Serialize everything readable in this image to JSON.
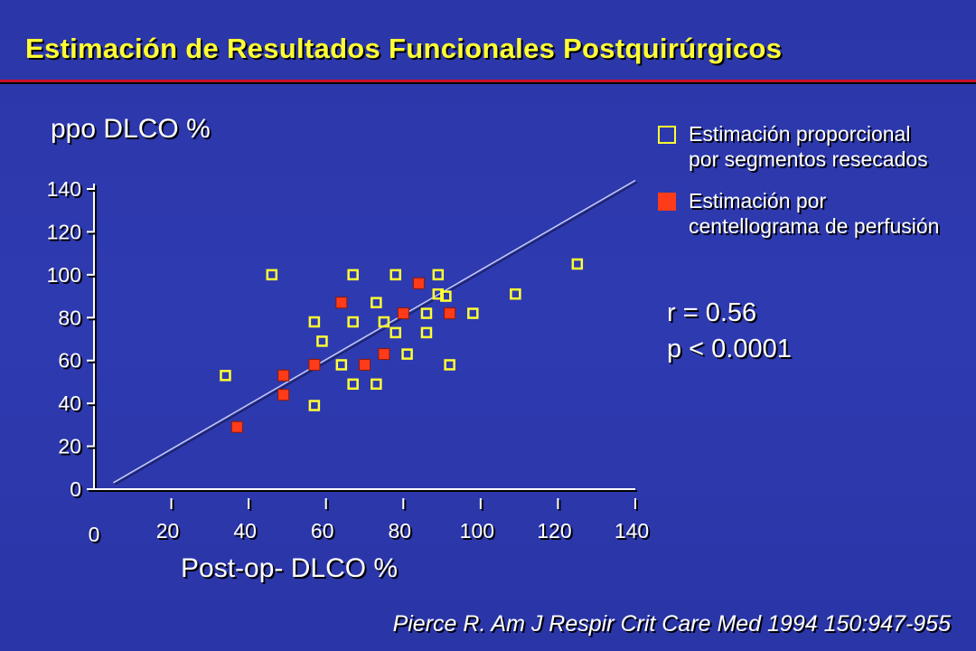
{
  "header": {
    "title": "Estimación de Resultados Funcionales Postquirúrgicos"
  },
  "legend": {
    "items": [
      {
        "line1": "Estimación proporcional",
        "line2": "por segmentos resecados",
        "marker": "open-square"
      },
      {
        "line1": "Estimación por",
        "line2": "centellograma de perfusión",
        "marker": "filled-square"
      }
    ]
  },
  "stats": {
    "r": "r = 0.56",
    "p": "p < 0.0001"
  },
  "citation": "Pierce R. Am J Respir Crit Care Med 1994 150:947-955",
  "colors": {
    "background": "#2e3ab0",
    "title": "#ffff33",
    "accent_rule": "#c8102e",
    "open_marker": "#ffff33",
    "filled_marker": "#ff3b1a",
    "text": "#ffffff"
  },
  "chart_data": {
    "type": "scatter",
    "xlabel": "Post-op- DLCO %",
    "ylabel": "ppo DLCO %",
    "xlim": [
      0,
      140
    ],
    "ylim": [
      0,
      140
    ],
    "x_ticks": [
      "20",
      "40",
      "60",
      "80",
      "100",
      "120",
      "140"
    ],
    "x_zero_label": "0",
    "y_ticks": [
      "0",
      "20",
      "40",
      "60",
      "80",
      "100",
      "120",
      "140"
    ],
    "series": [
      {
        "name": "Estimación proporcional por segmentos resecados",
        "marker": "open-square",
        "points": [
          [
            34,
            53
          ],
          [
            46,
            100
          ],
          [
            57,
            78
          ],
          [
            57,
            39
          ],
          [
            59,
            69
          ],
          [
            64,
            58
          ],
          [
            67,
            100
          ],
          [
            67,
            78
          ],
          [
            67,
            49
          ],
          [
            73,
            87
          ],
          [
            73,
            49
          ],
          [
            75,
            78
          ],
          [
            78,
            100
          ],
          [
            78,
            73
          ],
          [
            81,
            63
          ],
          [
            86,
            82
          ],
          [
            86,
            73
          ],
          [
            89,
            100
          ],
          [
            89,
            91
          ],
          [
            91,
            90
          ],
          [
            92,
            58
          ],
          [
            98,
            82
          ],
          [
            109,
            91
          ],
          [
            125,
            105
          ]
        ]
      },
      {
        "name": "Estimación por centellograma de perfusión",
        "marker": "filled-square",
        "points": [
          [
            37,
            29
          ],
          [
            49,
            53
          ],
          [
            49,
            44
          ],
          [
            57,
            58
          ],
          [
            64,
            87
          ],
          [
            70,
            58
          ],
          [
            75,
            63
          ],
          [
            80,
            82
          ],
          [
            84,
            96
          ],
          [
            92,
            82
          ]
        ]
      }
    ],
    "regression_line": {
      "x": [
        5,
        140
      ],
      "y": [
        3,
        144
      ]
    }
  }
}
